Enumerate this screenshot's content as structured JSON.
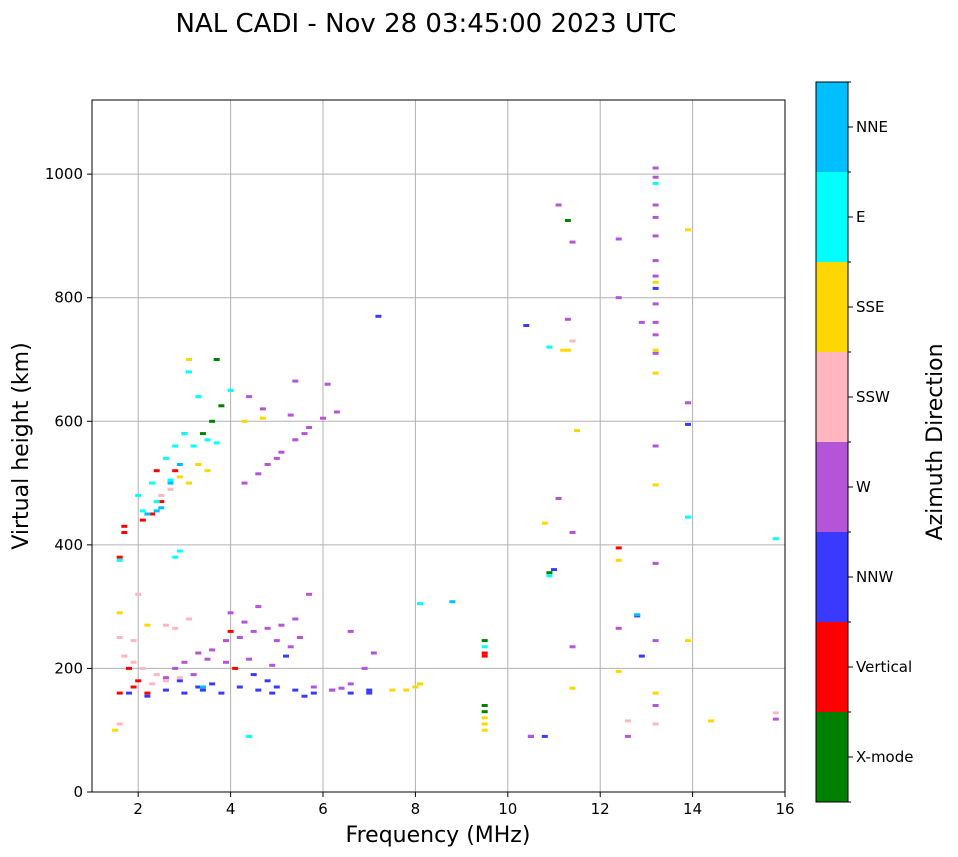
{
  "chart_data": {
    "type": "scatter",
    "title": "NAL CADI - Nov 28 03:45:00 2023 UTC",
    "xlabel": "Frequency (MHz)",
    "ylabel": "Virtual height (km)",
    "xlim": [
      1,
      16
    ],
    "ylim": [
      0,
      1120
    ],
    "xticks": [
      2,
      4,
      6,
      8,
      10,
      12,
      14,
      16
    ],
    "yticks": [
      0,
      200,
      400,
      600,
      800,
      1000
    ],
    "grid": true,
    "colorbar": {
      "label": "Azimuth Direction",
      "categories": [
        {
          "name": "X-mode",
          "color": "#008000"
        },
        {
          "name": "Vertical",
          "color": "#ff0000"
        },
        {
          "name": "NNW",
          "color": "#3a3aff"
        },
        {
          "name": "W",
          "color": "#b455d8"
        },
        {
          "name": "SSW",
          "color": "#ffb6c1"
        },
        {
          "name": "SSE",
          "color": "#ffd700"
        },
        {
          "name": "E",
          "color": "#00ffff"
        },
        {
          "name": "NNE",
          "color": "#00bfff"
        }
      ]
    },
    "series": [
      {
        "name": "X-mode",
        "points": [
          [
            3.7,
            700
          ],
          [
            3.8,
            625
          ],
          [
            3.6,
            600
          ],
          [
            3.4,
            580
          ],
          [
            11.3,
            925
          ],
          [
            9.5,
            245
          ],
          [
            9.5,
            140
          ],
          [
            9.5,
            130
          ],
          [
            10.9,
            355
          ]
        ]
      },
      {
        "name": "Vertical",
        "points": [
          [
            1.6,
            380
          ],
          [
            1.7,
            430
          ],
          [
            1.8,
            200
          ],
          [
            1.6,
            160
          ],
          [
            1.9,
            170
          ],
          [
            2.3,
            450
          ],
          [
            2.5,
            470
          ],
          [
            2.4,
            520
          ],
          [
            2.8,
            520
          ],
          [
            3.0,
            580
          ],
          [
            4.0,
            260
          ],
          [
            4.1,
            200
          ],
          [
            9.5,
            225
          ],
          [
            9.5,
            220
          ],
          [
            12.4,
            395
          ],
          [
            1.7,
            420
          ],
          [
            2.1,
            440
          ],
          [
            2.0,
            180
          ],
          [
            2.2,
            160
          ]
        ]
      },
      {
        "name": "NNW",
        "points": [
          [
            1.8,
            160
          ],
          [
            2.2,
            155
          ],
          [
            2.6,
            165
          ],
          [
            3.0,
            160
          ],
          [
            3.4,
            165
          ],
          [
            3.8,
            160
          ],
          [
            4.2,
            170
          ],
          [
            4.6,
            165
          ],
          [
            5.0,
            170
          ],
          [
            5.4,
            165
          ],
          [
            5.8,
            160
          ],
          [
            6.2,
            165
          ],
          [
            6.6,
            160
          ],
          [
            7.0,
            165
          ],
          [
            7.2,
            770
          ],
          [
            10.4,
            755
          ],
          [
            11.0,
            360
          ],
          [
            12.8,
            285
          ],
          [
            12.9,
            220
          ],
          [
            13.2,
            815
          ],
          [
            13.9,
            595
          ],
          [
            10.5,
            90
          ],
          [
            10.8,
            90
          ],
          [
            4.5,
            190
          ],
          [
            4.8,
            180
          ],
          [
            5.2,
            220
          ],
          [
            3.6,
            175
          ],
          [
            2.9,
            180
          ],
          [
            3.3,
            170
          ],
          [
            4.9,
            160
          ],
          [
            5.6,
            155
          ],
          [
            7.0,
            160
          ]
        ]
      },
      {
        "name": "W",
        "points": [
          [
            2.6,
            185
          ],
          [
            2.8,
            200
          ],
          [
            3.0,
            210
          ],
          [
            3.3,
            225
          ],
          [
            3.6,
            230
          ],
          [
            3.9,
            245
          ],
          [
            4.2,
            250
          ],
          [
            4.5,
            260
          ],
          [
            4.8,
            265
          ],
          [
            5.1,
            270
          ],
          [
            5.4,
            280
          ],
          [
            5.7,
            320
          ],
          [
            4.6,
            515
          ],
          [
            4.8,
            530
          ],
          [
            5.1,
            550
          ],
          [
            5.4,
            570
          ],
          [
            5.7,
            590
          ],
          [
            6.0,
            605
          ],
          [
            6.3,
            615
          ],
          [
            6.1,
            660
          ],
          [
            5.4,
            665
          ],
          [
            4.3,
            500
          ],
          [
            6.2,
            165
          ],
          [
            6.6,
            175
          ],
          [
            6.9,
            200
          ],
          [
            6.6,
            260
          ],
          [
            7.1,
            225
          ],
          [
            4.4,
            640
          ],
          [
            4.7,
            620
          ],
          [
            5.3,
            610
          ],
          [
            5.6,
            580
          ],
          [
            5.0,
            540
          ],
          [
            11.1,
            950
          ],
          [
            11.4,
            890
          ],
          [
            11.3,
            765
          ],
          [
            11.1,
            475
          ],
          [
            11.4,
            420
          ],
          [
            11.4,
            235
          ],
          [
            12.4,
            895
          ],
          [
            12.4,
            800
          ],
          [
            12.9,
            760
          ],
          [
            13.2,
            1010
          ],
          [
            13.2,
            995
          ],
          [
            13.2,
            950
          ],
          [
            13.2,
            930
          ],
          [
            13.2,
            900
          ],
          [
            13.2,
            860
          ],
          [
            13.2,
            835
          ],
          [
            13.2,
            790
          ],
          [
            13.2,
            760
          ],
          [
            13.2,
            740
          ],
          [
            13.2,
            710
          ],
          [
            13.2,
            560
          ],
          [
            13.2,
            370
          ],
          [
            13.2,
            245
          ],
          [
            13.2,
            140
          ],
          [
            12.4,
            265
          ],
          [
            12.6,
            90
          ],
          [
            13.9,
            630
          ],
          [
            10.5,
            90
          ],
          [
            15.8,
            118
          ],
          [
            4.0,
            290
          ],
          [
            4.3,
            275
          ],
          [
            4.6,
            300
          ],
          [
            5.0,
            245
          ],
          [
            5.3,
            235
          ],
          [
            5.5,
            250
          ],
          [
            3.9,
            210
          ],
          [
            4.4,
            215
          ],
          [
            4.9,
            205
          ],
          [
            5.8,
            170
          ],
          [
            6.4,
            168
          ],
          [
            3.2,
            190
          ],
          [
            3.5,
            215
          ]
        ]
      },
      {
        "name": "SSW",
        "points": [
          [
            1.6,
            250
          ],
          [
            1.7,
            220
          ],
          [
            1.9,
            210
          ],
          [
            2.1,
            200
          ],
          [
            2.4,
            190
          ],
          [
            2.6,
            270
          ],
          [
            2.8,
            265
          ],
          [
            2.0,
            320
          ],
          [
            1.6,
            110
          ],
          [
            2.7,
            490
          ],
          [
            2.5,
            480
          ],
          [
            11.4,
            730
          ],
          [
            12.6,
            115
          ],
          [
            13.2,
            110
          ],
          [
            15.8,
            128
          ],
          [
            3.1,
            280
          ],
          [
            1.9,
            245
          ],
          [
            2.3,
            175
          ],
          [
            2.6,
            180
          ],
          [
            2.9,
            185
          ]
        ]
      },
      {
        "name": "SSE",
        "points": [
          [
            1.6,
            290
          ],
          [
            1.5,
            100
          ],
          [
            2.2,
            270
          ],
          [
            3.1,
            700
          ],
          [
            3.5,
            520
          ],
          [
            4.3,
            600
          ],
          [
            4.7,
            605
          ],
          [
            7.5,
            165
          ],
          [
            7.8,
            165
          ],
          [
            8.0,
            170
          ],
          [
            8.1,
            175
          ],
          [
            9.5,
            100
          ],
          [
            9.5,
            110
          ],
          [
            9.5,
            120
          ],
          [
            10.8,
            435
          ],
          [
            11.2,
            715
          ],
          [
            11.3,
            715
          ],
          [
            11.5,
            585
          ],
          [
            11.4,
            168
          ],
          [
            12.4,
            375
          ],
          [
            12.4,
            195
          ],
          [
            13.2,
            825
          ],
          [
            13.2,
            715
          ],
          [
            13.2,
            678
          ],
          [
            13.2,
            497
          ],
          [
            13.2,
            160
          ],
          [
            13.9,
            910
          ],
          [
            13.9,
            245
          ],
          [
            14.4,
            115
          ],
          [
            3.3,
            530
          ],
          [
            3.1,
            500
          ],
          [
            2.9,
            510
          ]
        ]
      },
      {
        "name": "E",
        "points": [
          [
            1.6,
            375
          ],
          [
            2.0,
            480
          ],
          [
            2.3,
            500
          ],
          [
            2.6,
            540
          ],
          [
            2.8,
            560
          ],
          [
            3.0,
            580
          ],
          [
            3.3,
            640
          ],
          [
            3.5,
            570
          ],
          [
            3.7,
            565
          ],
          [
            4.0,
            650
          ],
          [
            3.1,
            680
          ],
          [
            2.9,
            390
          ],
          [
            2.8,
            380
          ],
          [
            4.4,
            90
          ],
          [
            8.1,
            305
          ],
          [
            9.5,
            235
          ],
          [
            10.9,
            720
          ],
          [
            10.9,
            350
          ],
          [
            13.2,
            985
          ],
          [
            13.9,
            445
          ],
          [
            15.8,
            410
          ],
          [
            2.1,
            455
          ],
          [
            2.4,
            470
          ],
          [
            2.7,
            505
          ],
          [
            3.2,
            560
          ]
        ]
      },
      {
        "name": "NNE",
        "points": [
          [
            2.5,
            460
          ],
          [
            2.4,
            455
          ],
          [
            2.7,
            500
          ],
          [
            2.2,
            450
          ],
          [
            2.9,
            530
          ],
          [
            3.4,
            170
          ],
          [
            8.8,
            308
          ],
          [
            12.8,
            287
          ]
        ]
      }
    ]
  }
}
